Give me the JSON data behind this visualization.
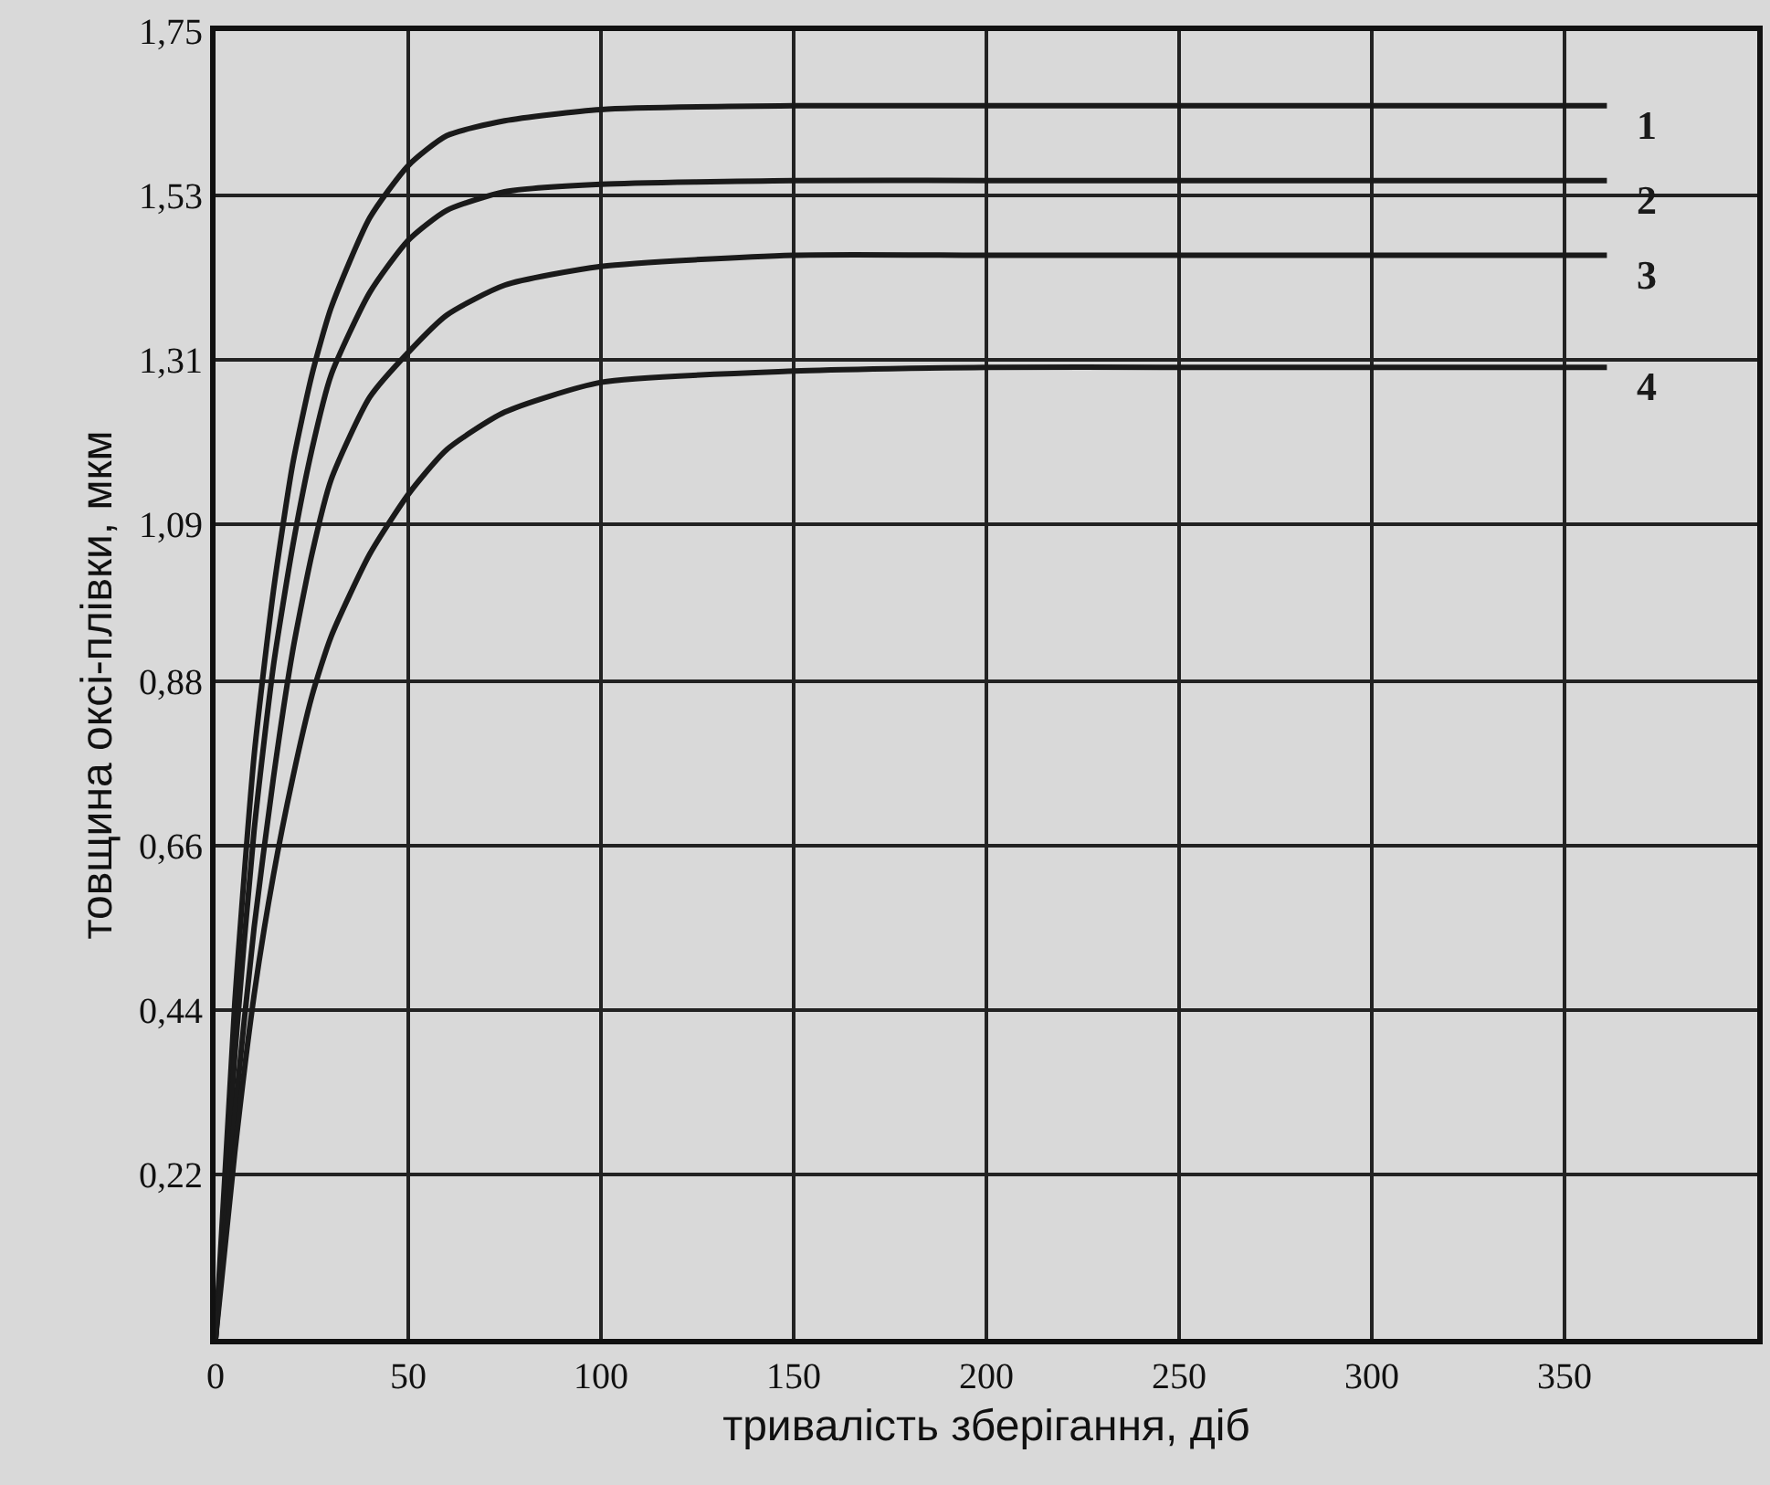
{
  "chart_data": {
    "type": "line",
    "xlabel": "тривалість зберігання, діб",
    "ylabel": "товщина оксі-плівки, мкм",
    "x": [
      0,
      5,
      10,
      15,
      20,
      25,
      30,
      40,
      50,
      60,
      75,
      100,
      150,
      200,
      250,
      300,
      361
    ],
    "series": [
      {
        "name": "1",
        "color": "#1a1a1a",
        "values": [
          0,
          0.45,
          0.78,
          1.0,
          1.17,
          1.29,
          1.38,
          1.5,
          1.57,
          1.61,
          1.63,
          1.645,
          1.65,
          1.65,
          1.65,
          1.65,
          1.65
        ]
      },
      {
        "name": "2",
        "color": "#1a1a1a",
        "values": [
          0,
          0.38,
          0.68,
          0.9,
          1.06,
          1.19,
          1.29,
          1.4,
          1.47,
          1.51,
          1.535,
          1.545,
          1.55,
          1.55,
          1.55,
          1.55,
          1.55
        ]
      },
      {
        "name": "3",
        "color": "#1a1a1a",
        "values": [
          0,
          0.3,
          0.55,
          0.75,
          0.92,
          1.05,
          1.15,
          1.26,
          1.32,
          1.37,
          1.41,
          1.435,
          1.45,
          1.45,
          1.45,
          1.45,
          1.45
        ]
      },
      {
        "name": "4",
        "color": "#1a1a1a",
        "values": [
          0,
          0.25,
          0.46,
          0.62,
          0.75,
          0.86,
          0.94,
          1.05,
          1.13,
          1.19,
          1.24,
          1.28,
          1.295,
          1.3,
          1.3,
          1.3,
          1.3
        ]
      }
    ],
    "xlim": [
      0,
      400
    ],
    "xticks": [
      0,
      50,
      100,
      150,
      200,
      250,
      300,
      350
    ],
    "ylim": [
      0,
      1.75
    ],
    "yticks": [
      {
        "value": 0.22,
        "label": "0,22"
      },
      {
        "value": 0.44,
        "label": "0,44"
      },
      {
        "value": 0.66,
        "label": "0,66"
      },
      {
        "value": 0.88,
        "label": "0,88"
      },
      {
        "value": 1.09,
        "label": "1,09"
      },
      {
        "value": 1.31,
        "label": "1,31"
      },
      {
        "value": 1.53,
        "label": "1,53"
      },
      {
        "value": 1.75,
        "label": "1,75"
      }
    ],
    "grid": true,
    "legend": false,
    "marker": "none",
    "line_style": "solid"
  }
}
